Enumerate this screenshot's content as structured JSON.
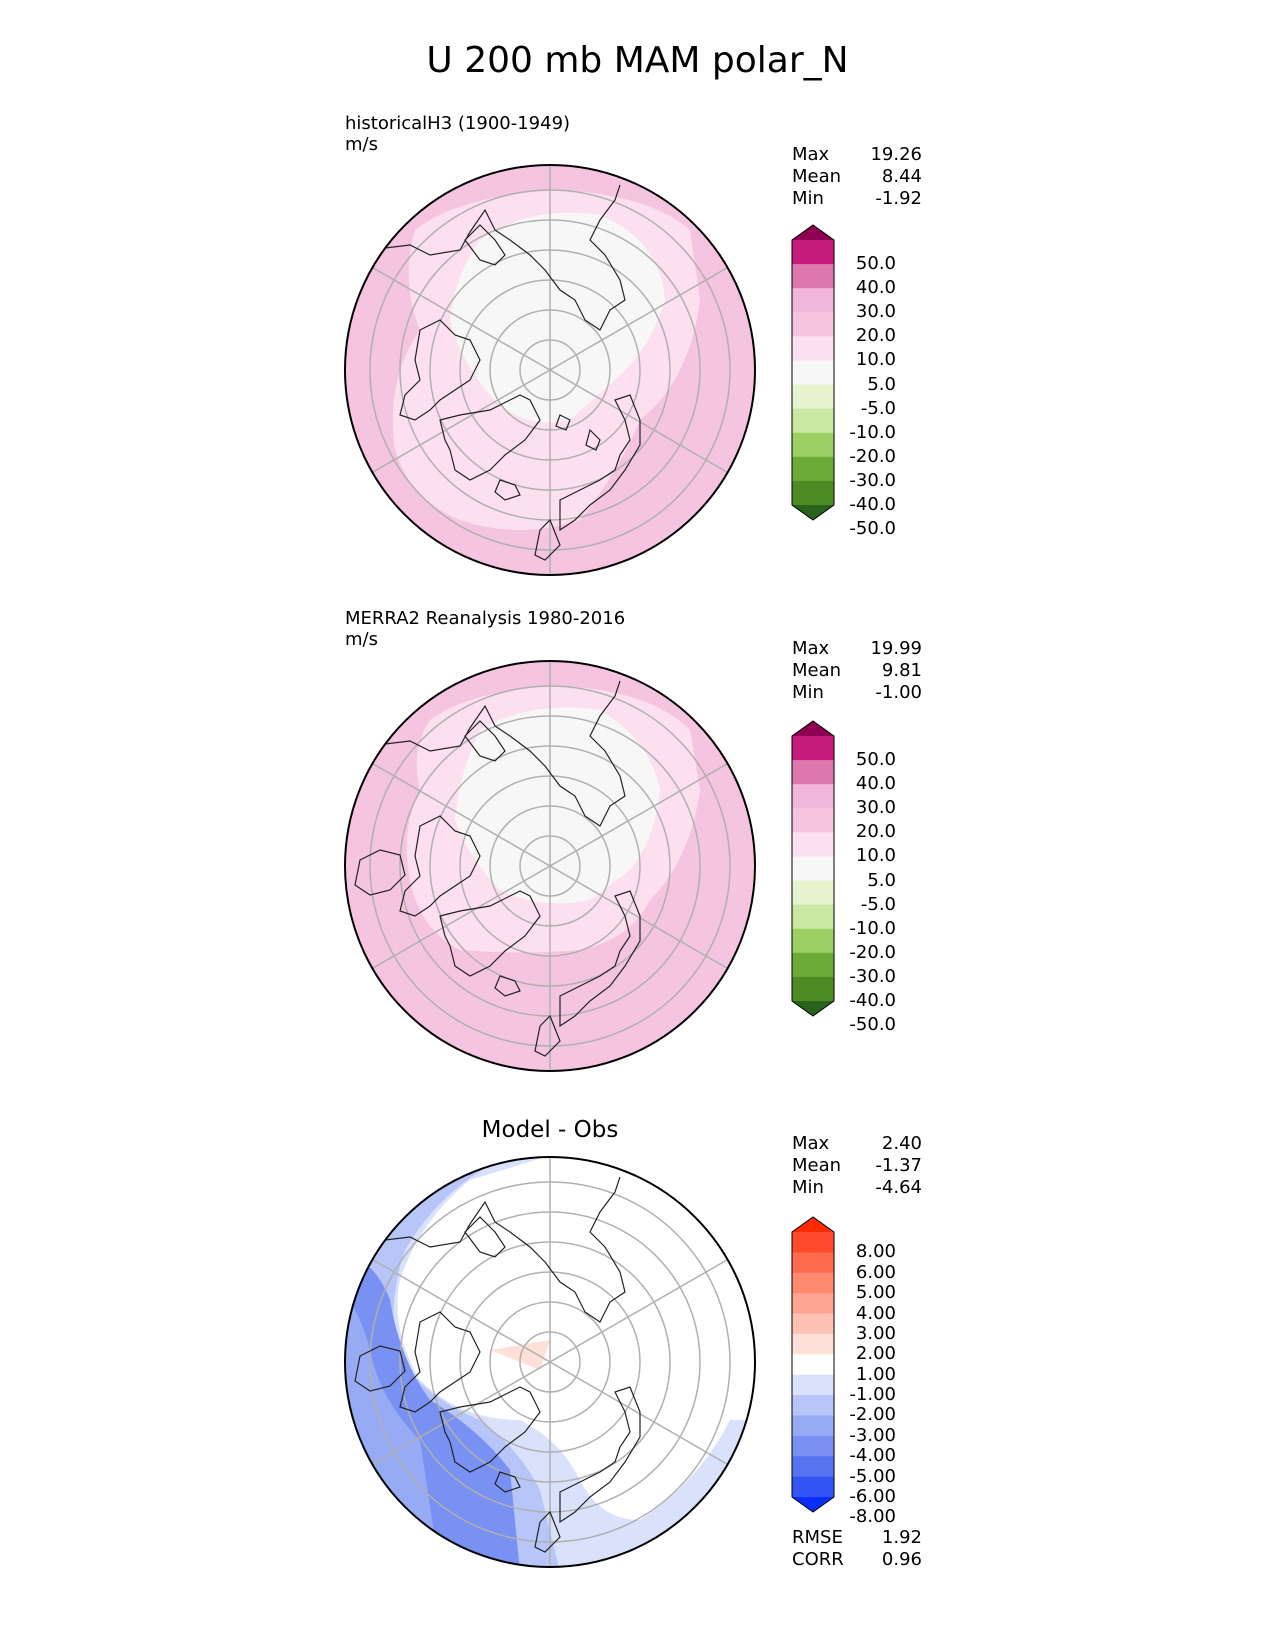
{
  "title": "U 200 mb MAM polar_N",
  "panels": [
    {
      "title": "historicalH3 (1900-1949)",
      "units": "m/s",
      "stats": [
        {
          "label": "Max",
          "value": "19.26"
        },
        {
          "label": "Mean",
          "value": "8.44"
        },
        {
          "label": "Min",
          "value": "-1.92"
        }
      ],
      "colorbar": {
        "labels": [
          "50.0",
          "40.0",
          "30.0",
          "20.0",
          "10.0",
          "5.0",
          "-5.0",
          "-10.0",
          "-20.0",
          "-30.0",
          "-40.0",
          "-50.0"
        ],
        "colors": [
          "#8e0152",
          "#c51b7d",
          "#de77ae",
          "#f1b6da",
          "#f5c4e0",
          "#fde0ef",
          "#f7f7f7",
          "#e6f5d0",
          "#c8e8a3",
          "#9ccf64",
          "#6cab35",
          "#4d8c22",
          "#276419"
        ]
      }
    },
    {
      "title": "MERRA2 Reanalysis 1980-2016",
      "units": "m/s",
      "stats": [
        {
          "label": "Max",
          "value": "19.99"
        },
        {
          "label": "Mean",
          "value": "9.81"
        },
        {
          "label": "Min",
          "value": "-1.00"
        }
      ],
      "colorbar": {
        "labels": [
          "50.0",
          "40.0",
          "30.0",
          "20.0",
          "10.0",
          "5.0",
          "-5.0",
          "-10.0",
          "-20.0",
          "-30.0",
          "-40.0",
          "-50.0"
        ],
        "colors": [
          "#8e0152",
          "#c51b7d",
          "#de77ae",
          "#f1b6da",
          "#f5c4e0",
          "#fde0ef",
          "#f7f7f7",
          "#e6f5d0",
          "#c8e8a3",
          "#9ccf64",
          "#6cab35",
          "#4d8c22",
          "#276419"
        ]
      }
    },
    {
      "title": "Model - Obs",
      "stats": [
        {
          "label": "Max",
          "value": "2.40"
        },
        {
          "label": "Mean",
          "value": "-1.37"
        },
        {
          "label": "Min",
          "value": "-4.64"
        }
      ],
      "colorbar": {
        "labels": [
          "8.00",
          "6.00",
          "5.00",
          "4.00",
          "3.00",
          "2.00",
          "1.00",
          "-1.00",
          "-2.00",
          "-3.00",
          "-4.00",
          "-5.00",
          "-6.00",
          "-8.00"
        ],
        "colors": [
          "#ff2a00",
          "#ff4b2b",
          "#ff6a4d",
          "#ff8a70",
          "#ffa592",
          "#ffc1b3",
          "#fde0d8",
          "#ffffff",
          "#d9e1fb",
          "#b7c5f8",
          "#97abf5",
          "#7891f2",
          "#5873ef",
          "#3355f5",
          "#0a2ffc"
        ]
      },
      "bottom_stats": [
        {
          "label": "RMSE",
          "value": "1.92"
        },
        {
          "label": "CORR",
          "value": "0.96"
        }
      ]
    }
  ]
}
